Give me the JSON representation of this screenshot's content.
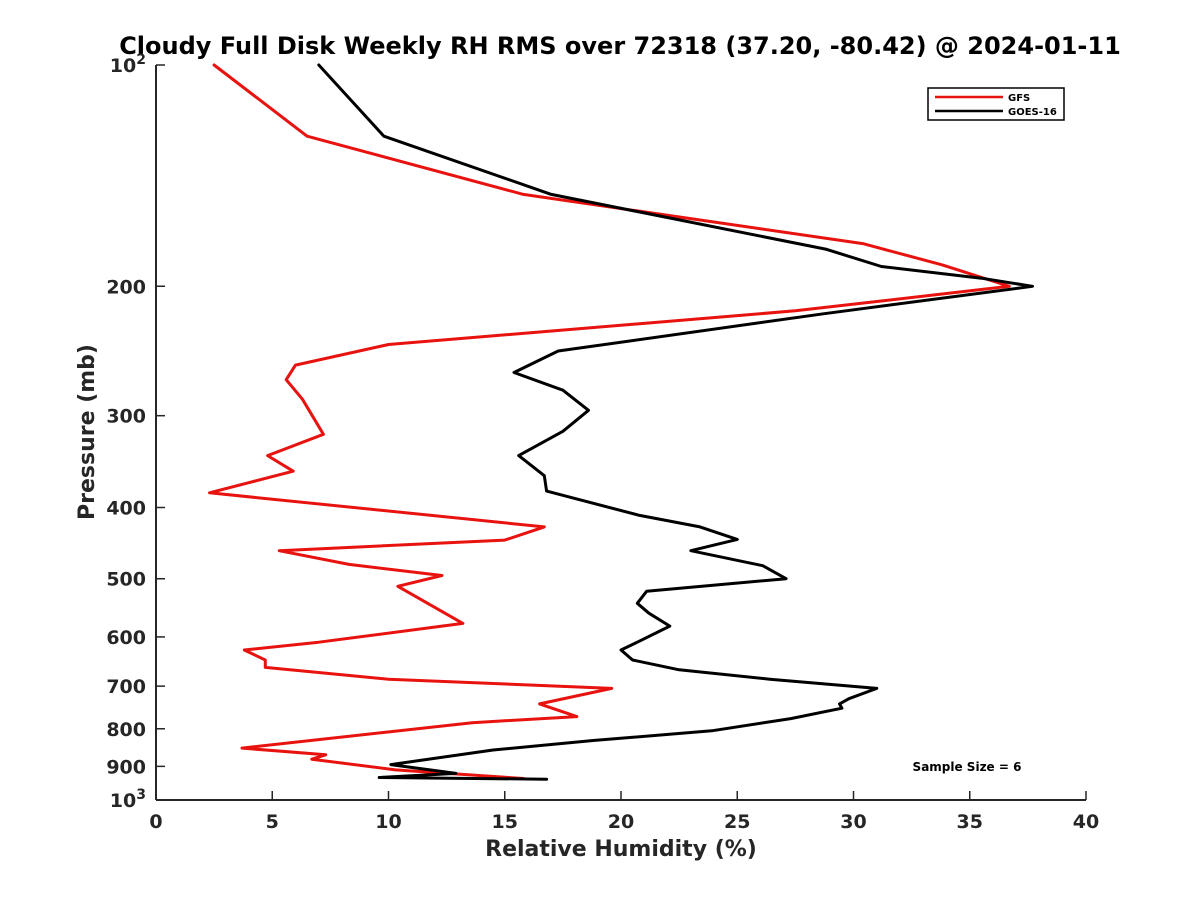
{
  "chart_data": {
    "type": "line",
    "title": "Cloudy Full Disk Weekly RH RMS over 72318 (37.20, -80.42) @ 2024-01-11",
    "xlabel": "Relative Humidity (%)",
    "ylabel": "Pressure (mb)",
    "xlim": [
      0,
      40
    ],
    "ylim": [
      100,
      1000
    ],
    "yscale": "log",
    "y_reversed": true,
    "xticks": [
      0,
      5,
      10,
      15,
      20,
      25,
      30,
      35,
      40
    ],
    "yticks": [
      {
        "value": 100,
        "label": "10",
        "sup": "2"
      },
      {
        "value": 200,
        "label": "200"
      },
      {
        "value": 300,
        "label": "300"
      },
      {
        "value": 400,
        "label": "400"
      },
      {
        "value": 500,
        "label": "500"
      },
      {
        "value": 600,
        "label": "600"
      },
      {
        "value": 700,
        "label": "700"
      },
      {
        "value": 800,
        "label": "800"
      },
      {
        "value": 900,
        "label": "900"
      },
      {
        "value": 1000,
        "label": "10",
        "sup": "3"
      }
    ],
    "legend_position": "top-right",
    "annotation": "Sample Size = 6",
    "series": [
      {
        "name": "GFS",
        "color": "#e8120f",
        "points": [
          [
            2.5,
            100
          ],
          [
            6.5,
            125
          ],
          [
            15.8,
            150
          ],
          [
            30.4,
            175
          ],
          [
            33.8,
            187
          ],
          [
            36.7,
            200
          ],
          [
            27.5,
            216
          ],
          [
            10.0,
            240
          ],
          [
            6.0,
            256
          ],
          [
            5.6,
            268
          ],
          [
            6.3,
            285
          ],
          [
            7.2,
            318
          ],
          [
            4.8,
            340
          ],
          [
            5.9,
            357
          ],
          [
            2.3,
            382
          ],
          [
            16.7,
            425
          ],
          [
            15.0,
            443
          ],
          [
            5.3,
            458
          ],
          [
            8.3,
            478
          ],
          [
            12.3,
            495
          ],
          [
            10.4,
            512
          ],
          [
            13.2,
            575
          ],
          [
            7.0,
            610
          ],
          [
            3.8,
            625
          ],
          [
            4.7,
            645
          ],
          [
            4.7,
            660
          ],
          [
            10.0,
            685
          ],
          [
            19.6,
            705
          ],
          [
            16.5,
            740
          ],
          [
            18.1,
            770
          ],
          [
            13.6,
            785
          ],
          [
            3.7,
            850
          ],
          [
            7.3,
            868
          ],
          [
            6.7,
            880
          ],
          [
            10.3,
            910
          ],
          [
            15.8,
            935
          ]
        ]
      },
      {
        "name": "GOES-16",
        "color": "#000000",
        "points": [
          [
            7.0,
            100
          ],
          [
            9.8,
            125
          ],
          [
            17.0,
            150
          ],
          [
            28.8,
            178
          ],
          [
            31.2,
            188
          ],
          [
            35.5,
            195
          ],
          [
            37.7,
            200
          ],
          [
            28.7,
            218
          ],
          [
            17.3,
            245
          ],
          [
            15.4,
            262
          ],
          [
            17.5,
            277
          ],
          [
            18.6,
            295
          ],
          [
            17.5,
            315
          ],
          [
            15.6,
            340
          ],
          [
            16.7,
            362
          ],
          [
            16.8,
            380
          ],
          [
            20.8,
            410
          ],
          [
            23.4,
            425
          ],
          [
            25.0,
            442
          ],
          [
            23.0,
            458
          ],
          [
            26.1,
            480
          ],
          [
            27.1,
            500
          ],
          [
            21.1,
            520
          ],
          [
            20.7,
            540
          ],
          [
            21.2,
            557
          ],
          [
            22.1,
            580
          ],
          [
            20.7,
            610
          ],
          [
            20.0,
            625
          ],
          [
            20.5,
            645
          ],
          [
            22.5,
            665
          ],
          [
            26.4,
            685
          ],
          [
            31.0,
            705
          ],
          [
            29.8,
            728
          ],
          [
            29.4,
            740
          ],
          [
            29.5,
            750
          ],
          [
            27.3,
            775
          ],
          [
            23.9,
            805
          ],
          [
            18.8,
            830
          ],
          [
            14.5,
            855
          ],
          [
            10.1,
            895
          ],
          [
            12.9,
            920
          ],
          [
            9.6,
            932
          ],
          [
            16.8,
            937
          ]
        ]
      }
    ]
  }
}
